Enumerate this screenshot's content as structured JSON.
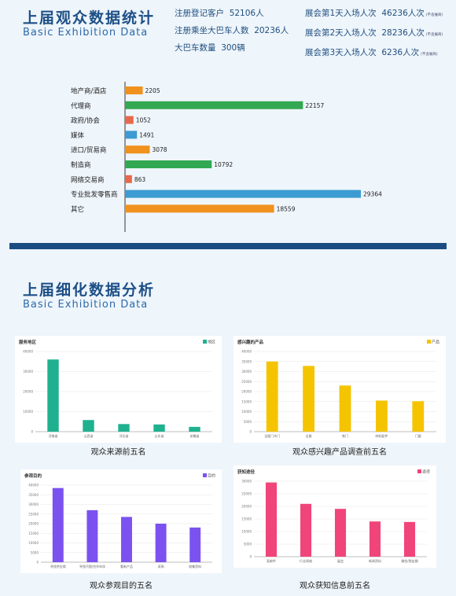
{
  "section1": {
    "title": "上届观众数据统计",
    "subtitle": "Basic Exhibition Data",
    "stats_left": [
      {
        "label": "注册登记客户",
        "value": "52106人"
      },
      {
        "label": "注册乘坐大巴车人数",
        "value": "20236人"
      },
      {
        "label": "大巴车数量",
        "value": "300辆"
      }
    ],
    "stats_right": [
      {
        "label": "展会第1天入场人次",
        "value": "46236人次",
        "note": "(不含展商)"
      },
      {
        "label": "展会第2天入场人次",
        "value": "28236人次",
        "note": "(不含展商)"
      },
      {
        "label": "展会第3天入场人次",
        "value": "6236人次",
        "note": "(不含展商)"
      }
    ]
  },
  "section2": {
    "title": "上届细化数据分析",
    "subtitle": "Basic Exhibition Data"
  },
  "colors": {
    "title": "#1d4f86",
    "divider": "#1b4d82",
    "orange": "#f0921d",
    "green": "#33a852",
    "red": "#e8684a",
    "blue": "#3c9bd2",
    "teal": "#1fb18f",
    "yellow": "#f5c400",
    "purple": "#7b52f0",
    "pink": "#f0457a"
  },
  "chart_data": [
    {
      "type": "bar",
      "orientation": "horizontal",
      "categories": [
        "地产商/酒店",
        "代理商",
        "政府/协会",
        "媒体",
        "进口/贸易商",
        "制造商",
        "网络交易商",
        "专业批发零售商",
        "其它"
      ],
      "values": [
        2205,
        22157,
        1052,
        1491,
        3078,
        10792,
        863,
        29364,
        18559
      ],
      "bar_colors": [
        "#f0921d",
        "#33a852",
        "#e8684a",
        "#3c9bd2",
        "#f0921d",
        "#33a852",
        "#e8684a",
        "#3c9bd2",
        "#f0921d"
      ]
    },
    {
      "type": "bar",
      "title": "服务地区",
      "legend": "地区",
      "color": "#1fb18f",
      "caption": "观众来源前五名",
      "categories": [
        "河南省",
        "山西省",
        "河北省",
        "山东省",
        "安徽省"
      ],
      "values": [
        36000,
        5800,
        3800,
        3600,
        2400
      ],
      "ylim": [
        0,
        40000
      ],
      "yticks": [
        "0",
        "10000",
        "20000",
        "30000",
        "40000"
      ]
    },
    {
      "type": "bar",
      "title": "感兴趣的产品",
      "legend": "产品",
      "color": "#f5c400",
      "caption": "观众感兴趣产品调查前五名",
      "categories": [
        "全屋门木门",
        "全屋",
        "铁门",
        "材料配件",
        "门窗"
      ],
      "values": [
        35000,
        32800,
        23000,
        15500,
        15200
      ],
      "ylim": [
        0,
        40000
      ],
      "yticks": [
        "0",
        "5000",
        "10000",
        "15000",
        "20000",
        "25000",
        "30000",
        "35000",
        "40000"
      ]
    },
    {
      "type": "bar",
      "title": "参观目的",
      "legend": "目的",
      "color": "#7b52f0",
      "caption": "观众参观目的五名",
      "categories": [
        "寻找供应商",
        "寻找代理/合作伙伴",
        "看新产品",
        "采购",
        "收集资料"
      ],
      "values": [
        38500,
        27000,
        23500,
        20000,
        18000
      ],
      "ylim": [
        0,
        40000
      ],
      "yticks": [
        "0",
        "5000",
        "10000",
        "15000",
        "20000",
        "25000",
        "30000",
        "35000",
        "40000"
      ]
    },
    {
      "type": "bar",
      "title": "获知途径",
      "legend": "途径",
      "color": "#f0457a",
      "caption": "观众获知信息前五名",
      "categories": [
        "直邮件",
        "行业网络",
        "展会",
        "新闻资料",
        "微信/朋友圈"
      ],
      "values": [
        29500,
        21000,
        19000,
        14000,
        13800
      ],
      "ylim": [
        0,
        30000
      ],
      "yticks": [
        "0",
        "5000",
        "10000",
        "15000",
        "20000",
        "25000",
        "30000"
      ]
    }
  ]
}
